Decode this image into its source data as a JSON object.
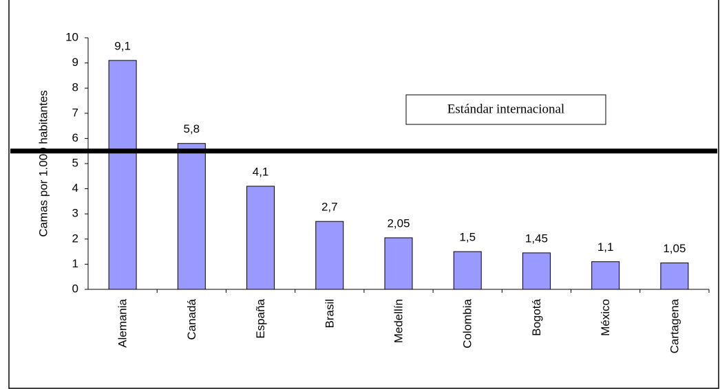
{
  "chart_data": {
    "type": "bar",
    "y_label": "Camas por 1.000 habitantes",
    "categories": [
      "Alemania",
      "Canadá",
      "España",
      "Brasil",
      "Medellín",
      "Colombia",
      "Bogotá",
      "México",
      "Cartagena"
    ],
    "values": [
      9.1,
      5.8,
      4.1,
      2.7,
      2.05,
      1.5,
      1.45,
      1.1,
      1.05
    ],
    "value_labels": [
      "9,1",
      "5,8",
      "4,1",
      "2,7",
      "2,05",
      "1,5",
      "1,45",
      "1,1",
      "1,05"
    ],
    "color": "#9999ff",
    "ylim": [
      0,
      10
    ],
    "yticks": [
      0,
      1,
      2,
      3,
      4,
      5,
      6,
      7,
      8,
      9,
      10
    ],
    "grid": false,
    "reference_line": {
      "value": 5.5,
      "label": "Estándar internacional"
    }
  }
}
